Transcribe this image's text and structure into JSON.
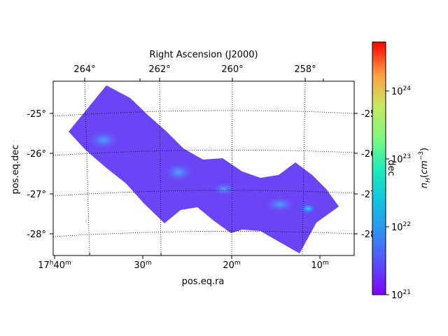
{
  "chart_data": {
    "type": "heatmap",
    "projection": "sky map (equatorial)",
    "top_axis_title": "Right Ascension (J2000)",
    "top_ticks": [
      "264°",
      "262°",
      "260°",
      "258°"
    ],
    "bottom_ticks": [
      "17h40m",
      "30m",
      "20m",
      "10m"
    ],
    "bottom_ticks_display": [
      {
        "main": "17",
        "sup1": "h",
        "mid": "40",
        "sup2": "m"
      },
      {
        "main": "30",
        "sup1": "",
        "mid": "",
        "sup2": "m"
      },
      {
        "main": "20",
        "sup1": "",
        "mid": "",
        "sup2": "m"
      },
      {
        "main": "10",
        "sup1": "",
        "mid": "",
        "sup2": "m"
      }
    ],
    "left_ticks": [
      "-25°",
      "-26°",
      "-27°",
      "-28°"
    ],
    "right_ticks": [
      "-25",
      "-26",
      "-27",
      "-28"
    ],
    "xlabel": "pos.eq.ra",
    "ylabel": "pos.eq.dec",
    "right_axis_title": "dec",
    "colorbar": {
      "label": "n_H(cm^-3)",
      "label_display": {
        "base": "n",
        "sub": "H",
        "open": "(",
        "unit": "cm",
        "exp": "−3",
        "close": ")"
      },
      "scale": "log",
      "ticks": [
        1e+21,
        1e+22,
        1e+23,
        1e+24
      ],
      "tick_display": [
        {
          "base": "10",
          "exp": "21"
        },
        {
          "base": "10",
          "exp": "22"
        },
        {
          "base": "10",
          "exp": "23"
        },
        {
          "base": "10",
          "exp": "24"
        }
      ],
      "colormap": "rainbow",
      "vmin_exp": 21,
      "vmax_exp": 25
    },
    "grid": true,
    "grid_style": "dotted",
    "data_region_level": "mostly ~1e21 with brighter spots near 1e22",
    "colors": {
      "background_low": "#7a2cff",
      "region_fill": "#6a4cf5",
      "hotspot": "#20d0ff"
    }
  }
}
